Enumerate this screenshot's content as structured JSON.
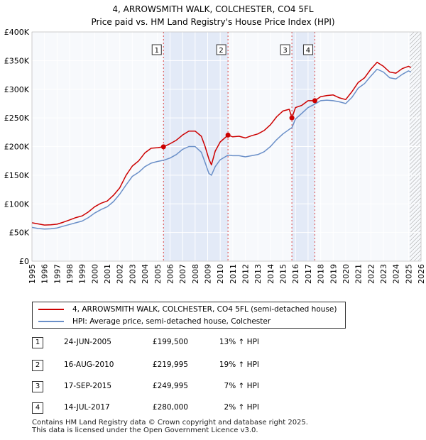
{
  "chart_data": {
    "type": "line",
    "title": "4, ARROWSMITH WALK, COLCHESTER, CO4 5FL",
    "subtitle": "Price paid vs. HM Land Registry's House Price Index (HPI)",
    "xlim": [
      1995,
      2026
    ],
    "ylim": [
      0,
      400000
    ],
    "x_ticks": [
      "1995",
      "1996",
      "1997",
      "1998",
      "1999",
      "2000",
      "2001",
      "2002",
      "2003",
      "2004",
      "2005",
      "2006",
      "2007",
      "2008",
      "2009",
      "2010",
      "2011",
      "2012",
      "2013",
      "2014",
      "2015",
      "2016",
      "2017",
      "2018",
      "2019",
      "2020",
      "2021",
      "2022",
      "2023",
      "2024",
      "2025",
      "2026"
    ],
    "y_ticks": [
      {
        "value": 0,
        "label": "£0"
      },
      {
        "value": 50000,
        "label": "£50K"
      },
      {
        "value": 100000,
        "label": "£100K"
      },
      {
        "value": 150000,
        "label": "£150K"
      },
      {
        "value": 200000,
        "label": "£200K"
      },
      {
        "value": 250000,
        "label": "£250K"
      },
      {
        "value": 300000,
        "label": "£300K"
      },
      {
        "value": 350000,
        "label": "£350K"
      },
      {
        "value": 400000,
        "label": "£400K"
      }
    ],
    "grid": true,
    "shaded_periods": [
      [
        2005.48,
        2010.62
      ],
      [
        2015.71,
        2017.54
      ]
    ],
    "forecast_start": 2025.1,
    "series": [
      {
        "name": "4, ARROWSMITH WALK, COLCHESTER, CO4 5FL (semi-detached house)",
        "color": "#cc0000",
        "points": [
          [
            1995,
            67000
          ],
          [
            1995.5,
            65000
          ],
          [
            1996,
            63000
          ],
          [
            1996.5,
            63500
          ],
          [
            1997,
            64500
          ],
          [
            1997.5,
            68000
          ],
          [
            1998,
            72000
          ],
          [
            1998.5,
            76000
          ],
          [
            1999,
            79000
          ],
          [
            1999.5,
            86000
          ],
          [
            2000,
            95000
          ],
          [
            2000.5,
            101000
          ],
          [
            2001,
            105000
          ],
          [
            2001.5,
            115000
          ],
          [
            2002,
            128000
          ],
          [
            2002.5,
            150000
          ],
          [
            2003,
            166000
          ],
          [
            2003.5,
            175000
          ],
          [
            2004,
            189000
          ],
          [
            2004.5,
            197000
          ],
          [
            2005,
            198000
          ],
          [
            2005.48,
            199500
          ],
          [
            2006,
            205000
          ],
          [
            2006.5,
            211000
          ],
          [
            2007,
            220000
          ],
          [
            2007.5,
            227000
          ],
          [
            2008,
            227000
          ],
          [
            2008.5,
            218000
          ],
          [
            2008.8,
            200000
          ],
          [
            2009.1,
            178000
          ],
          [
            2009.3,
            168000
          ],
          [
            2009.6,
            192000
          ],
          [
            2010,
            208000
          ],
          [
            2010.62,
            219995
          ],
          [
            2011,
            217000
          ],
          [
            2011.5,
            218000
          ],
          [
            2012,
            215000
          ],
          [
            2012.5,
            219000
          ],
          [
            2013,
            222000
          ],
          [
            2013.5,
            228000
          ],
          [
            2014,
            238000
          ],
          [
            2014.5,
            252000
          ],
          [
            2015,
            262000
          ],
          [
            2015.5,
            265000
          ],
          [
            2015.71,
            249995
          ],
          [
            2016,
            268000
          ],
          [
            2016.5,
            272000
          ],
          [
            2017,
            280000
          ],
          [
            2017.54,
            280000
          ],
          [
            2018,
            287000
          ],
          [
            2018.5,
            289000
          ],
          [
            2019,
            290000
          ],
          [
            2019.5,
            285000
          ],
          [
            2020,
            282000
          ],
          [
            2020.5,
            296000
          ],
          [
            2021,
            312000
          ],
          [
            2021.5,
            320000
          ],
          [
            2022,
            335000
          ],
          [
            2022.5,
            347000
          ],
          [
            2023,
            340000
          ],
          [
            2023.5,
            330000
          ],
          [
            2024,
            328000
          ],
          [
            2024.5,
            336000
          ],
          [
            2025,
            340000
          ],
          [
            2025.2,
            338000
          ]
        ]
      },
      {
        "name": "HPI: Average price, semi-detached house, Colchester",
        "color": "#6a8fc8",
        "points": [
          [
            1995,
            59000
          ],
          [
            1995.5,
            57000
          ],
          [
            1996,
            56000
          ],
          [
            1996.5,
            56500
          ],
          [
            1997,
            58000
          ],
          [
            1997.5,
            61000
          ],
          [
            1998,
            64000
          ],
          [
            1998.5,
            67000
          ],
          [
            1999,
            70000
          ],
          [
            1999.5,
            76000
          ],
          [
            2000,
            84000
          ],
          [
            2000.5,
            90000
          ],
          [
            2001,
            95000
          ],
          [
            2001.5,
            104000
          ],
          [
            2002,
            117000
          ],
          [
            2002.5,
            133000
          ],
          [
            2003,
            148000
          ],
          [
            2003.5,
            155000
          ],
          [
            2004,
            165000
          ],
          [
            2004.5,
            171000
          ],
          [
            2005,
            174000
          ],
          [
            2005.48,
            176000
          ],
          [
            2006,
            180000
          ],
          [
            2006.5,
            186000
          ],
          [
            2007,
            195000
          ],
          [
            2007.5,
            200000
          ],
          [
            2008,
            200000
          ],
          [
            2008.5,
            190000
          ],
          [
            2008.8,
            172000
          ],
          [
            2009.1,
            153000
          ],
          [
            2009.3,
            150000
          ],
          [
            2009.6,
            165000
          ],
          [
            2010,
            177000
          ],
          [
            2010.62,
            185000
          ],
          [
            2011,
            184000
          ],
          [
            2011.5,
            184000
          ],
          [
            2012,
            182000
          ],
          [
            2012.5,
            184000
          ],
          [
            2013,
            186000
          ],
          [
            2013.5,
            191000
          ],
          [
            2014,
            200000
          ],
          [
            2014.5,
            212000
          ],
          [
            2015,
            222000
          ],
          [
            2015.5,
            230000
          ],
          [
            2015.71,
            233000
          ],
          [
            2016,
            248000
          ],
          [
            2016.5,
            258000
          ],
          [
            2017,
            268000
          ],
          [
            2017.54,
            274000
          ],
          [
            2018,
            280000
          ],
          [
            2018.5,
            281000
          ],
          [
            2019,
            280000
          ],
          [
            2019.5,
            278000
          ],
          [
            2020,
            275000
          ],
          [
            2020.5,
            286000
          ],
          [
            2021,
            302000
          ],
          [
            2021.5,
            310000
          ],
          [
            2022,
            323000
          ],
          [
            2022.5,
            335000
          ],
          [
            2023,
            330000
          ],
          [
            2023.5,
            320000
          ],
          [
            2024,
            318000
          ],
          [
            2024.5,
            326000
          ],
          [
            2025,
            332000
          ],
          [
            2025.2,
            330000
          ]
        ]
      }
    ],
    "markers": [
      {
        "label": "1",
        "x": 2005.48,
        "y": 199500
      },
      {
        "label": "2",
        "x": 2010.62,
        "y": 219995
      },
      {
        "label": "3",
        "x": 2015.71,
        "y": 249995
      },
      {
        "label": "4",
        "x": 2017.54,
        "y": 280000
      }
    ]
  },
  "legend": {
    "items": [
      {
        "label": "4, ARROWSMITH WALK, COLCHESTER, CO4 5FL (semi-detached house)",
        "color": "#cc0000"
      },
      {
        "label": "HPI: Average price, semi-detached house, Colchester",
        "color": "#6a8fc8"
      }
    ]
  },
  "transactions": [
    {
      "num": "1",
      "date": "24-JUN-2005",
      "price": "£199,500",
      "hpi": "13% ↑ HPI"
    },
    {
      "num": "2",
      "date": "16-AUG-2010",
      "price": "£219,995",
      "hpi": "19% ↑ HPI"
    },
    {
      "num": "3",
      "date": "17-SEP-2015",
      "price": "£249,995",
      "hpi": "7% ↑ HPI"
    },
    {
      "num": "4",
      "date": "14-JUL-2017",
      "price": "£280,000",
      "hpi": "2% ↑ HPI"
    }
  ],
  "footer": {
    "line1": "Contains HM Land Registry data © Crown copyright and database right 2025.",
    "line2": "This data is licensed under the Open Government Licence v3.0."
  }
}
